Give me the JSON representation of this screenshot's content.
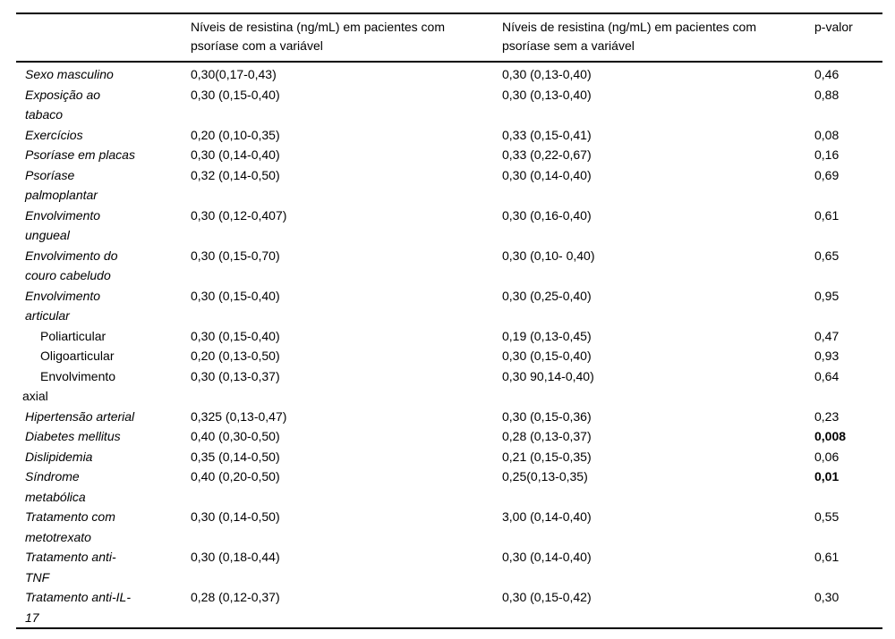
{
  "colors": {
    "background": "#ffffff",
    "text": "#000000",
    "rule": "#000000"
  },
  "table": {
    "headers": {
      "col1": "",
      "col2": "Níveis de resistina (ng/mL) em pacientes com psoríase com a variável",
      "col3": "Níveis de resistina (ng/mL) em pacientes com psoríase sem a variável",
      "col4": "p-valor"
    },
    "rows": [
      {
        "label": "Sexo masculino",
        "with_var": "0,30(0,17-0,43)",
        "without_var": "0,30 (0,13-0,40)",
        "p": "0,46",
        "italic": true,
        "indent": false,
        "bold_p": false
      },
      {
        "label": "Exposição ao\ntabaco",
        "with_var": "0,30 (0,15-0,40)",
        "without_var": "0,30 (0,13-0,40)",
        "p": "0,88",
        "italic": true,
        "indent": false,
        "bold_p": false
      },
      {
        "label": "Exercícios",
        "with_var": "0,20 (0,10-0,35)",
        "without_var": "0,33 (0,15-0,41)",
        "p": "0,08",
        "italic": true,
        "indent": false,
        "bold_p": false
      },
      {
        "label": "Psoríase em placas",
        "with_var": "0,30 (0,14-0,40)",
        "without_var": "0,33 (0,22-0,67)",
        "p": "0,16",
        "italic": true,
        "indent": false,
        "bold_p": false
      },
      {
        "label": "Psoríase\npalmoplantar",
        "with_var": "0,32 (0,14-0,50)",
        "without_var": "0,30 (0,14-0,40)",
        "p": "0,69",
        "italic": true,
        "indent": false,
        "bold_p": false
      },
      {
        "label": "Envolvimento\nungueal",
        "with_var": "0,30 (0,12-0,407)",
        "without_var": "0,30 (0,16-0,40)",
        "p": "0,61",
        "italic": true,
        "indent": false,
        "bold_p": false
      },
      {
        "label": "Envolvimento do\ncouro cabeludo",
        "with_var": "0,30 (0,15-0,70)",
        "without_var": "0,30 (0,10- 0,40)",
        "p": "0,65",
        "italic": true,
        "indent": false,
        "bold_p": false
      },
      {
        "label": "Envolvimento\narticular",
        "with_var": "0,30 (0,15-0,40)",
        "without_var": "0,30 (0,25-0,40)",
        "p": "0,95",
        "italic": true,
        "indent": false,
        "bold_p": false
      },
      {
        "label": "Poliarticular",
        "with_var": "0,30 (0,15-0,40)",
        "without_var": "0,19 (0,13-0,45)",
        "p": "0,47",
        "italic": false,
        "indent": true,
        "bold_p": false
      },
      {
        "label": "Oligoarticular",
        "with_var": "0,20 (0,13-0,50)",
        "without_var": "0,30 (0,15-0,40)",
        "p": "0,93",
        "italic": false,
        "indent": true,
        "bold_p": false
      },
      {
        "label": "Envolvimento\naxial",
        "with_var": "0,30 (0,13-0,37)",
        "without_var": "0,30 90,14-0,40)",
        "p": "0,64",
        "italic": false,
        "indent": true,
        "bold_p": false
      },
      {
        "label": "Hipertensão arterial",
        "with_var": "0,325 (0,13-0,47)",
        "without_var": "0,30 (0,15-0,36)",
        "p": "0,23",
        "italic": true,
        "indent": false,
        "bold_p": false
      },
      {
        "label": "Diabetes mellitus",
        "with_var": "0,40 (0,30-0,50)",
        "without_var": "0,28 (0,13-0,37)",
        "p": "0,008",
        "italic": true,
        "indent": false,
        "bold_p": true
      },
      {
        "label": "Dislipidemia",
        "with_var": "0,35 (0,14-0,50)",
        "without_var": "0,21 (0,15-0,35)",
        "p": "0,06",
        "italic": true,
        "indent": false,
        "bold_p": false
      },
      {
        "label": "Síndrome\nmetabólica",
        "with_var": "0,40 (0,20-0,50)",
        "without_var": "0,25(0,13-0,35)",
        "p": "0,01",
        "italic": true,
        "indent": false,
        "bold_p": true
      },
      {
        "label": "Tratamento com\nmetotrexato",
        "with_var": "0,30 (0,14-0,50)",
        "without_var": "3,00 (0,14-0,40)",
        "p": "0,55",
        "italic": true,
        "indent": false,
        "bold_p": false
      },
      {
        "label": "Tratamento anti-\nTNF",
        "with_var": "0,30 (0,18-0,44)",
        "without_var": "0,30 (0,14-0,40)",
        "p": "0,61",
        "italic": true,
        "indent": false,
        "bold_p": false
      },
      {
        "label": "Tratamento anti-IL-\n17",
        "with_var": "0,28 (0,12-0,37)",
        "without_var": "0,30 (0,15-0,42)",
        "p": "0,30",
        "italic": true,
        "indent": false,
        "bold_p": false
      }
    ]
  }
}
